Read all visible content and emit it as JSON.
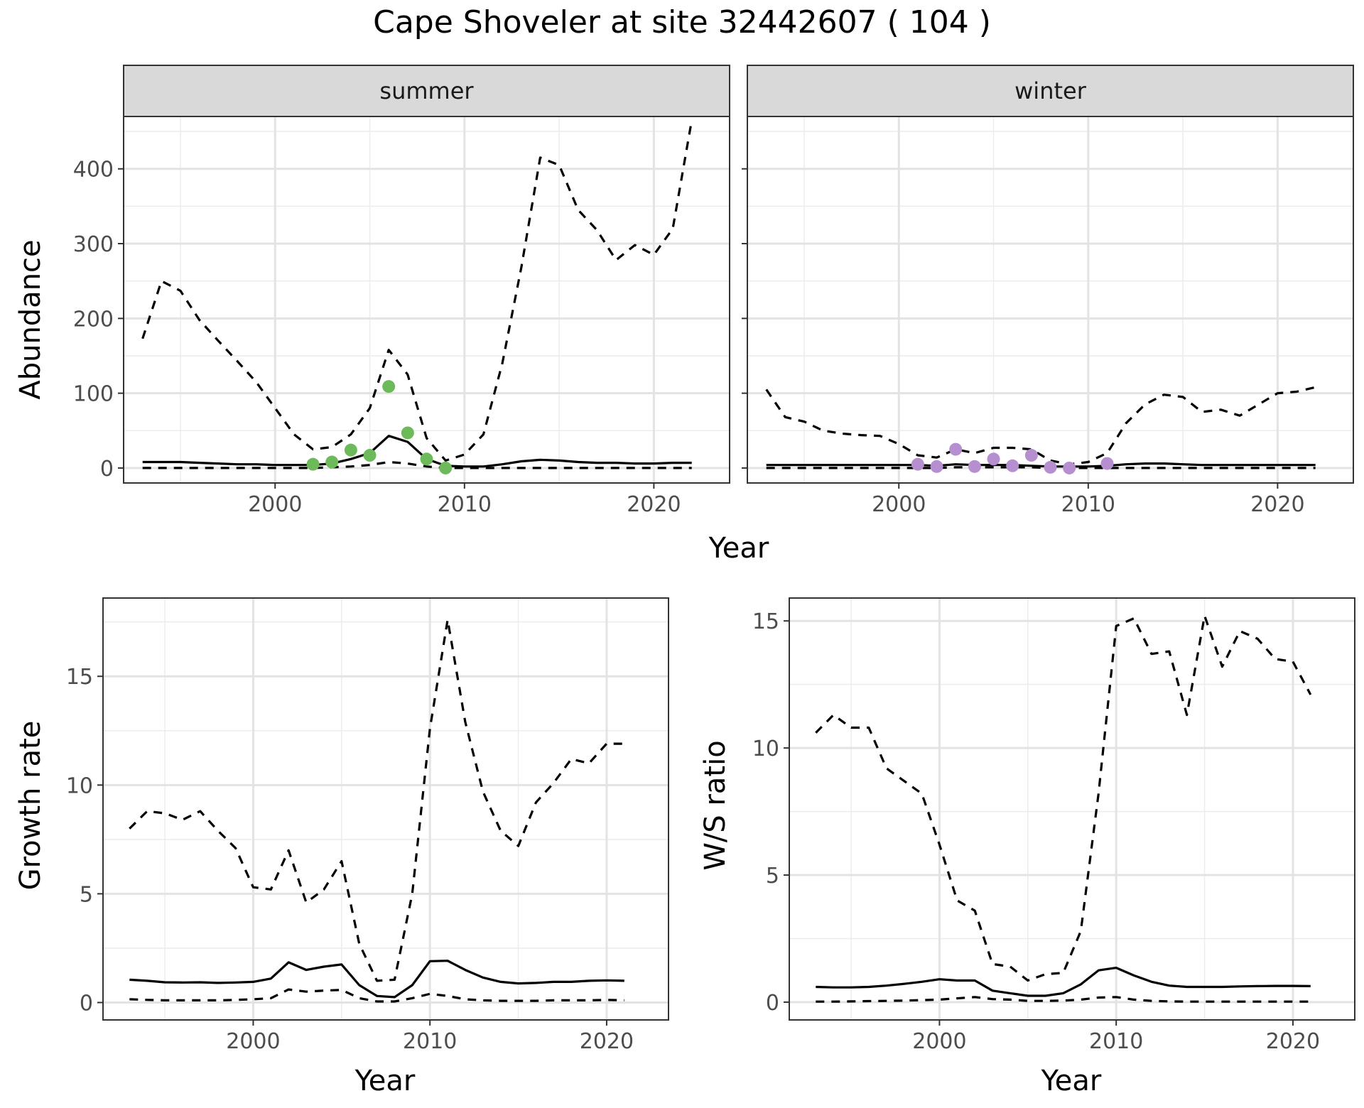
{
  "title": "Cape Shoveler at site 32442607 ( 104 )",
  "chart_data": [
    {
      "id": "abundance",
      "type": "line",
      "ylabel": "Abundance",
      "xlabel": "Year",
      "xlim": [
        1992,
        2024
      ],
      "ylim": [
        -20,
        470
      ],
      "xticks": [
        2000,
        2010,
        2020
      ],
      "yticks": [
        0,
        100,
        200,
        300,
        400
      ],
      "grid": true,
      "panels": [
        {
          "strip": "summer",
          "point_color": "#6dba5a",
          "series": [
            {
              "style": "solid",
              "x": [
                1993,
                1994,
                1995,
                1996,
                1997,
                1998,
                1999,
                2000,
                2001,
                2002,
                2003,
                2004,
                2005,
                2006,
                2007,
                2008,
                2009,
                2010,
                2011,
                2012,
                2013,
                2014,
                2015,
                2016,
                2017,
                2018,
                2019,
                2020,
                2021,
                2022
              ],
              "y": [
                8,
                8,
                8,
                7,
                6,
                5,
                5,
                4,
                4,
                4,
                6,
                12,
                20,
                43,
                35,
                12,
                3,
                2,
                2,
                5,
                9,
                11,
                10,
                8,
                7,
                7,
                6,
                6,
                7,
                7
              ]
            },
            {
              "style": "dashed",
              "x": [
                1993,
                1994,
                1995,
                1996,
                1997,
                1998,
                1999,
                2000,
                2001,
                2002,
                2003,
                2004,
                2005,
                2006,
                2007,
                2008,
                2009,
                2010,
                2011,
                2012,
                2013,
                2014,
                2015,
                2016,
                2017,
                2018,
                2019,
                2020,
                2021,
                2022
              ],
              "y": [
                173,
                250,
                237,
                198,
                170,
                143,
                115,
                80,
                45,
                25,
                28,
                45,
                80,
                158,
                125,
                40,
                10,
                18,
                45,
                140,
                268,
                415,
                405,
                345,
                318,
                278,
                298,
                285,
                320,
                465
              ]
            },
            {
              "style": "dashed",
              "x": [
                1993,
                1994,
                1995,
                1996,
                1997,
                1998,
                1999,
                2000,
                2001,
                2002,
                2003,
                2004,
                2005,
                2006,
                2007,
                2008,
                2009,
                2010,
                2011,
                2012,
                2013,
                2014,
                2015,
                2016,
                2017,
                2018,
                2019,
                2020,
                2021,
                2022
              ],
              "y": [
                0,
                0,
                0,
                0,
                0,
                0,
                0,
                0,
                0,
                0,
                1,
                2,
                4,
                8,
                6,
                2,
                0,
                0,
                0,
                0,
                0,
                0,
                0,
                0,
                0,
                0,
                0,
                0,
                0,
                0
              ]
            }
          ],
          "points": {
            "x": [
              2002,
              2003,
              2004,
              2005,
              2006,
              2007,
              2008,
              2009
            ],
            "y": [
              5,
              8,
              24,
              17,
              109,
              47,
              12,
              0
            ]
          }
        },
        {
          "strip": "winter",
          "point_color": "#b58fd0",
          "series": [
            {
              "style": "solid",
              "x": [
                1993,
                1994,
                1995,
                1996,
                1997,
                1998,
                1999,
                2000,
                2001,
                2002,
                2003,
                2004,
                2005,
                2006,
                2007,
                2008,
                2009,
                2010,
                2011,
                2012,
                2013,
                2014,
                2015,
                2016,
                2017,
                2018,
                2019,
                2020,
                2021,
                2022
              ],
              "y": [
                4,
                4,
                4,
                4,
                4,
                4,
                4,
                4,
                4,
                3,
                5,
                4,
                4,
                4,
                3,
                2,
                2,
                2,
                3,
                5,
                6,
                6,
                5,
                4,
                4,
                4,
                4,
                4,
                4,
                4
              ]
            },
            {
              "style": "dashed",
              "x": [
                1993,
                1994,
                1995,
                1996,
                1997,
                1998,
                1999,
                2000,
                2001,
                2002,
                2003,
                2004,
                2005,
                2006,
                2007,
                2008,
                2009,
                2010,
                2011,
                2012,
                2013,
                2014,
                2015,
                2016,
                2017,
                2018,
                2019,
                2020,
                2021,
                2022
              ],
              "y": [
                105,
                68,
                62,
                50,
                46,
                44,
                43,
                32,
                17,
                14,
                25,
                20,
                27,
                27,
                25,
                10,
                5,
                8,
                20,
                60,
                85,
                98,
                95,
                75,
                78,
                70,
                85,
                100,
                102,
                108
              ]
            },
            {
              "style": "dashed",
              "x": [
                1993,
                1994,
                1995,
                1996,
                1997,
                1998,
                1999,
                2000,
                2001,
                2002,
                2003,
                2004,
                2005,
                2006,
                2007,
                2008,
                2009,
                2010,
                2011,
                2012,
                2013,
                2014,
                2015,
                2016,
                2017,
                2018,
                2019,
                2020,
                2021,
                2022
              ],
              "y": [
                0,
                0,
                0,
                0,
                0,
                0,
                0,
                0,
                0,
                0,
                1,
                1,
                1,
                1,
                1,
                0,
                0,
                0,
                0,
                0,
                0,
                0,
                0,
                0,
                0,
                0,
                0,
                0,
                0,
                0
              ]
            }
          ],
          "points": {
            "x": [
              2001,
              2002,
              2003,
              2004,
              2005,
              2006,
              2007,
              2008,
              2009,
              2011
            ],
            "y": [
              5,
              2,
              25,
              2,
              12,
              3,
              17,
              1,
              0,
              6
            ]
          }
        }
      ]
    },
    {
      "id": "growth",
      "type": "line",
      "ylabel": "Growth rate",
      "xlabel": "Year",
      "xlim": [
        1991.5,
        2023.5
      ],
      "ylim": [
        -0.8,
        18.6
      ],
      "xticks": [
        2000,
        2010,
        2020
      ],
      "yticks": [
        0,
        5,
        10,
        15
      ],
      "grid": true,
      "series": [
        {
          "style": "solid",
          "x": [
            1993,
            1994,
            1995,
            1996,
            1997,
            1998,
            1999,
            2000,
            2001,
            2002,
            2003,
            2004,
            2005,
            2006,
            2007,
            2008,
            2009,
            2010,
            2011,
            2012,
            2013,
            2014,
            2015,
            2016,
            2017,
            2018,
            2019,
            2020,
            2021
          ],
          "y": [
            1.05,
            1.0,
            0.93,
            0.92,
            0.93,
            0.9,
            0.92,
            0.95,
            1.1,
            1.85,
            1.5,
            1.65,
            1.75,
            0.8,
            0.3,
            0.25,
            0.8,
            1.9,
            1.92,
            1.5,
            1.15,
            0.95,
            0.88,
            0.9,
            0.95,
            0.95,
            1.0,
            1.02,
            1.0
          ]
        },
        {
          "style": "dashed",
          "x": [
            1993,
            1994,
            1995,
            1996,
            1997,
            1998,
            1999,
            2000,
            2001,
            2002,
            2003,
            2004,
            2005,
            2006,
            2007,
            2008,
            2009,
            2010,
            2011,
            2012,
            2013,
            2014,
            2015,
            2016,
            2017,
            2018,
            2019,
            2020,
            2021
          ],
          "y": [
            8.0,
            8.8,
            8.7,
            8.4,
            8.8,
            7.9,
            7.1,
            5.3,
            5.2,
            7.0,
            4.6,
            5.2,
            6.5,
            2.7,
            1.0,
            1.05,
            5.0,
            12.6,
            17.6,
            12.9,
            9.7,
            7.9,
            7.2,
            9.2,
            10.1,
            11.2,
            11.0,
            11.9,
            11.9
          ]
        },
        {
          "style": "dashed",
          "x": [
            1993,
            1994,
            1995,
            1996,
            1997,
            1998,
            1999,
            2000,
            2001,
            2002,
            2003,
            2004,
            2005,
            2006,
            2007,
            2008,
            2009,
            2010,
            2011,
            2012,
            2013,
            2014,
            2015,
            2016,
            2017,
            2018,
            2019,
            2020,
            2021
          ],
          "y": [
            0.15,
            0.12,
            0.1,
            0.1,
            0.1,
            0.1,
            0.12,
            0.15,
            0.2,
            0.6,
            0.5,
            0.55,
            0.58,
            0.2,
            0.05,
            0.05,
            0.2,
            0.4,
            0.3,
            0.15,
            0.1,
            0.08,
            0.08,
            0.08,
            0.1,
            0.1,
            0.1,
            0.12,
            0.1
          ]
        }
      ]
    },
    {
      "id": "ws",
      "type": "line",
      "ylabel": "W/S ratio",
      "xlabel": "Year",
      "xlim": [
        1991.5,
        2023.5
      ],
      "ylim": [
        -0.7,
        15.9
      ],
      "xticks": [
        2000,
        2010,
        2020
      ],
      "yticks": [
        0,
        5,
        10,
        15
      ],
      "grid": true,
      "series": [
        {
          "style": "solid",
          "x": [
            1993,
            1994,
            1995,
            1996,
            1997,
            1998,
            1999,
            2000,
            2001,
            2002,
            2003,
            2004,
            2005,
            2006,
            2007,
            2008,
            2009,
            2010,
            2011,
            2012,
            2013,
            2014,
            2015,
            2016,
            2017,
            2018,
            2019,
            2020,
            2021
          ],
          "y": [
            0.6,
            0.58,
            0.58,
            0.6,
            0.65,
            0.72,
            0.8,
            0.9,
            0.85,
            0.85,
            0.45,
            0.35,
            0.25,
            0.25,
            0.35,
            0.7,
            1.25,
            1.35,
            1.05,
            0.8,
            0.65,
            0.6,
            0.6,
            0.6,
            0.62,
            0.63,
            0.64,
            0.64,
            0.63
          ]
        },
        {
          "style": "dashed",
          "x": [
            1993,
            1994,
            1995,
            1996,
            1997,
            1998,
            1999,
            2000,
            2001,
            2002,
            2003,
            2004,
            2005,
            2006,
            2007,
            2008,
            2009,
            2010,
            2011,
            2012,
            2013,
            2014,
            2015,
            2016,
            2017,
            2018,
            2019,
            2020,
            2021
          ],
          "y": [
            10.6,
            11.3,
            10.8,
            10.8,
            9.2,
            8.7,
            8.2,
            6.2,
            4.0,
            3.6,
            1.5,
            1.4,
            0.85,
            1.1,
            1.15,
            2.8,
            8.2,
            14.8,
            15.1,
            13.7,
            13.8,
            11.3,
            15.2,
            13.2,
            14.6,
            14.3,
            13.5,
            13.4,
            12.1
          ]
        },
        {
          "style": "dashed",
          "x": [
            1993,
            1994,
            1995,
            1996,
            1997,
            1998,
            1999,
            2000,
            2001,
            2002,
            2003,
            2004,
            2005,
            2006,
            2007,
            2008,
            2009,
            2010,
            2011,
            2012,
            2013,
            2014,
            2015,
            2016,
            2017,
            2018,
            2019,
            2020,
            2021
          ],
          "y": [
            0.02,
            0.02,
            0.03,
            0.04,
            0.05,
            0.06,
            0.08,
            0.1,
            0.15,
            0.2,
            0.12,
            0.1,
            0.05,
            0.05,
            0.06,
            0.1,
            0.18,
            0.2,
            0.1,
            0.05,
            0.03,
            0.02,
            0.02,
            0.02,
            0.02,
            0.02,
            0.02,
            0.02,
            0.02
          ]
        }
      ]
    }
  ]
}
